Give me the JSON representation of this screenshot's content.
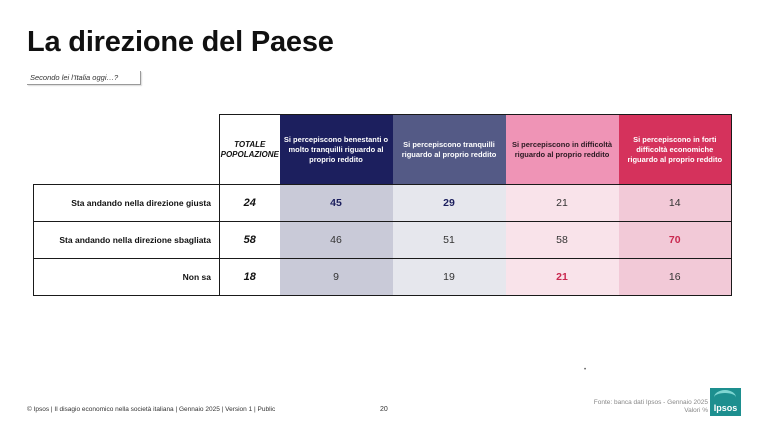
{
  "title": "La direzione del Paese",
  "question": "Secondo lei l'Italia oggi…?",
  "table": {
    "total_header": "TOTALE POPOLAZIONE",
    "group_headers": [
      "Si percepiscono benestanti o molto tranquilli riguardo al proprio reddito",
      "Si percepiscono tranquilli riguardo al proprio reddito",
      "Si percepiscono in difficoltà riguardo al proprio reddito",
      "Si percepiscono in forti difficoltà economiche riguardo al proprio reddito"
    ],
    "rows": [
      {
        "label": "Sta andando nella direzione giusta",
        "total": "24",
        "values": [
          "45",
          "29",
          "21",
          "14"
        ]
      },
      {
        "label": "Sta andando nella direzione sbagliata",
        "total": "58",
        "values": [
          "46",
          "51",
          "58",
          "70"
        ]
      },
      {
        "label": "Non sa",
        "total": "18",
        "values": [
          "9",
          "19",
          "21",
          "16"
        ]
      }
    ]
  },
  "colors": {
    "group1": "#1c1f5e",
    "group2": "#545a86",
    "group3": "#ef94b6",
    "group4": "#d5325c",
    "highlight_navy": "#1c1f5e",
    "highlight_red": "#c9284f",
    "logo": "#1d8f8f"
  },
  "dot": "•",
  "footer": {
    "left": "© Ipsos | Il disagio economico nella società italiana | Gennaio 2025 | Version 1 | Public",
    "page": "20",
    "source_line1": "Fonte: banca dati Ipsos - Gennaio 2025",
    "source_line2": "Valori %",
    "logo_text": "Ipsos"
  }
}
